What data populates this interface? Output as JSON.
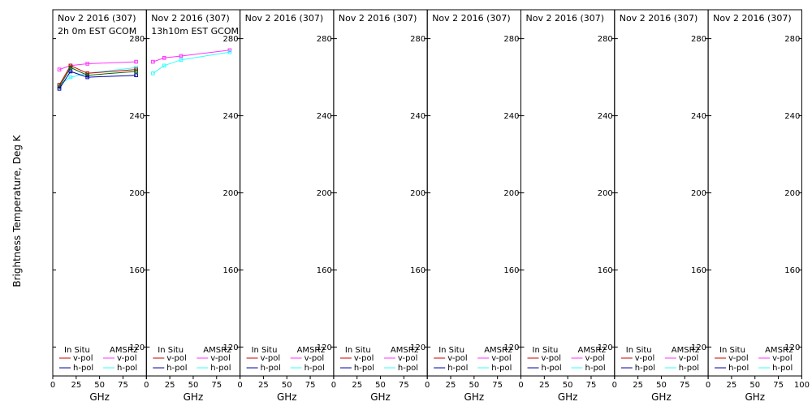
{
  "chart_data": {
    "type": "line",
    "ylabel": "Brightness Temperature, Deg K",
    "xlabel": "GHz",
    "xlim": [
      0,
      100
    ],
    "ylim": [
      105,
      295
    ],
    "yticks": [
      120,
      160,
      200,
      240,
      280
    ],
    "xticks": [
      0,
      25,
      50,
      75,
      100
    ],
    "grid": false,
    "legend": {
      "insitu_title": "In Situ",
      "amsr2_title": "AMSR2",
      "vpol": "v-pol",
      "hpol": "h-pol"
    },
    "colors": {
      "insitu_v": "#cc0000",
      "insitu_h": "#0000aa",
      "amsr2_v": "#ff33ff",
      "amsr2_h": "#33ffff",
      "insitu_mid": "#006600"
    },
    "panels": [
      {
        "title": "Nov 2 2016 (307)",
        "subtitle": "2h 0m EST GCOM",
        "series": [
          {
            "name": "AMSR2 v-pol",
            "color": "#ff33ff",
            "x": [
              7,
              19,
              37,
              89
            ],
            "y": [
              264,
              266,
              267,
              268
            ]
          },
          {
            "name": "AMSR2 h-pol",
            "color": "#33ffff",
            "x": [
              7,
              19,
              37,
              89
            ],
            "y": [
              256,
              260,
              262,
              265
            ]
          },
          {
            "name": "In Situ v-pol",
            "color": "#cc0000",
            "x": [
              7,
              19,
              37,
              89
            ],
            "y": [
              256,
              266,
              262,
              264
            ]
          },
          {
            "name": "In Situ",
            "color": "#006600",
            "x": [
              7,
              19,
              37,
              89
            ],
            "y": [
              255,
              265,
              261,
              263
            ]
          },
          {
            "name": "In Situ h-pol",
            "color": "#0000aa",
            "x": [
              7,
              19,
              37,
              89
            ],
            "y": [
              254,
              263,
              260,
              261
            ]
          }
        ]
      },
      {
        "title": "Nov 2 2016 (307)",
        "subtitle": "13h10m EST GCOM",
        "series": [
          {
            "name": "AMSR2 v-pol",
            "color": "#ff33ff",
            "x": [
              7,
              19,
              37,
              89
            ],
            "y": [
              268,
              270,
              271,
              274
            ]
          },
          {
            "name": "AMSR2 h-pol",
            "color": "#33ffff",
            "x": [
              7,
              19,
              37,
              89
            ],
            "y": [
              262,
              266,
              269,
              273
            ]
          }
        ]
      },
      {
        "title": "Nov 2 2016 (307)",
        "subtitle": "",
        "series": []
      },
      {
        "title": "Nov 2 2016 (307)",
        "subtitle": "",
        "series": []
      },
      {
        "title": "Nov 2 2016 (307)",
        "subtitle": "",
        "series": []
      },
      {
        "title": "Nov 2 2016 (307)",
        "subtitle": "",
        "series": []
      },
      {
        "title": "Nov 2 2016 (307)",
        "subtitle": "",
        "series": []
      },
      {
        "title": "Nov 2 2016 (307)",
        "subtitle": "",
        "series": []
      }
    ]
  }
}
